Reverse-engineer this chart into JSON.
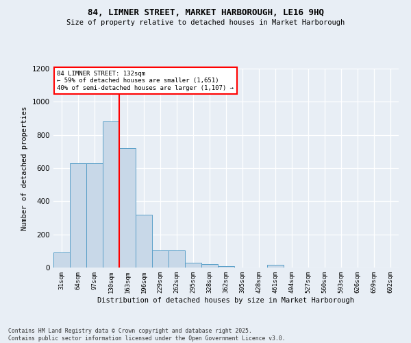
{
  "title_line1": "84, LIMNER STREET, MARKET HARBOROUGH, LE16 9HQ",
  "title_line2": "Size of property relative to detached houses in Market Harborough",
  "xlabel": "Distribution of detached houses by size in Market Harborough",
  "ylabel": "Number of detached properties",
  "bar_values": [
    90,
    630,
    630,
    880,
    720,
    320,
    105,
    105,
    30,
    22,
    10,
    0,
    0,
    15,
    0,
    0,
    0,
    0,
    0,
    0,
    0
  ],
  "categories": [
    "31sqm",
    "64sqm",
    "97sqm",
    "130sqm",
    "163sqm",
    "196sqm",
    "229sqm",
    "262sqm",
    "295sqm",
    "328sqm",
    "362sqm",
    "395sqm",
    "428sqm",
    "461sqm",
    "494sqm",
    "527sqm",
    "560sqm",
    "593sqm",
    "626sqm",
    "659sqm",
    "692sqm"
  ],
  "bar_color": "#c8d8e8",
  "bar_edge_color": "#5a9fc8",
  "vline_color": "red",
  "vline_x_index": 3,
  "annotation_box_text": "84 LIMNER STREET: 132sqm\n← 59% of detached houses are smaller (1,651)\n40% of semi-detached houses are larger (1,107) →",
  "annotation_box_color": "red",
  "annotation_box_bg": "white",
  "ylim": [
    0,
    1200
  ],
  "yticks": [
    0,
    200,
    400,
    600,
    800,
    1000,
    1200
  ],
  "footer_line1": "Contains HM Land Registry data © Crown copyright and database right 2025.",
  "footer_line2": "Contains public sector information licensed under the Open Government Licence v3.0.",
  "bg_color": "#e8eef5",
  "plot_bg_color": "#e8eef5"
}
